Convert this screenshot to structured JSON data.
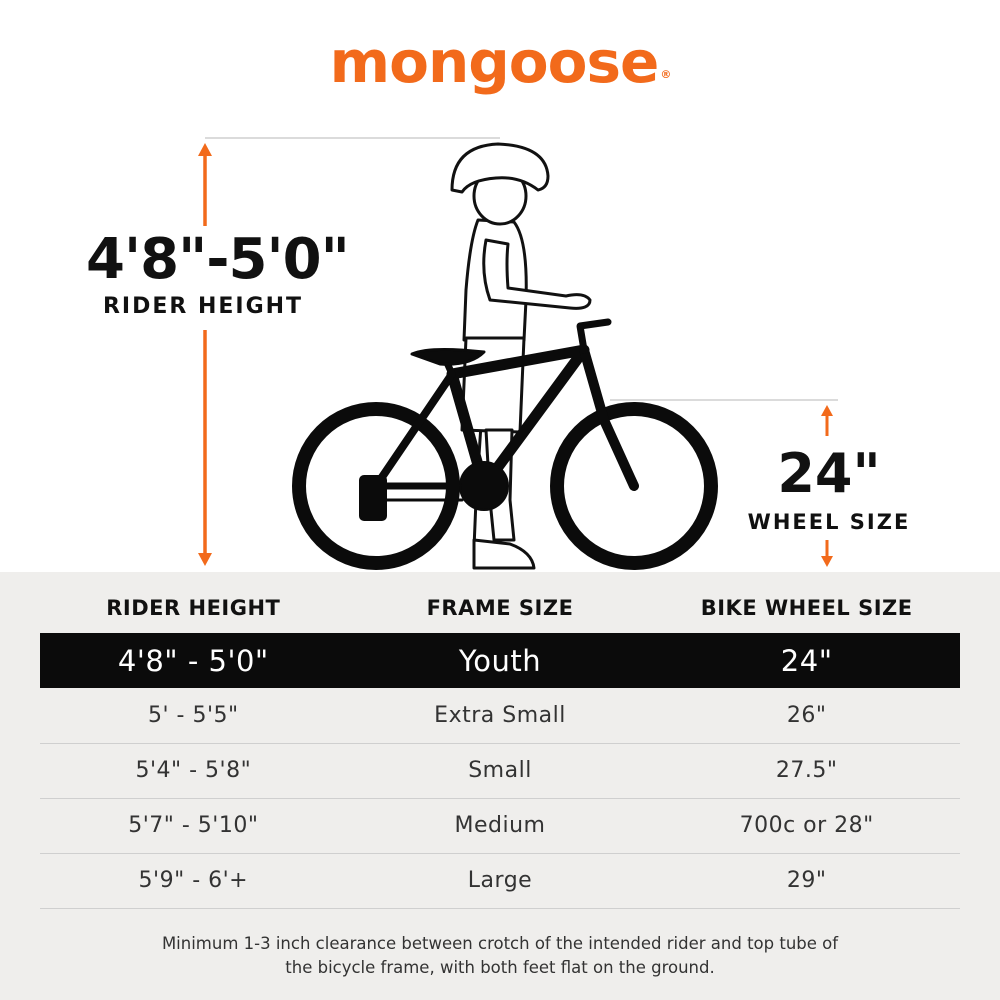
{
  "brand": {
    "name": "mongoose",
    "mark": "®"
  },
  "hero": {
    "rider_height_value": "4'8\"-5'0\"",
    "rider_height_label": "RIDER HEIGHT",
    "wheel_size_value": "24\"",
    "wheel_size_label": "WHEEL SIZE",
    "accent_color": "#f26a1b"
  },
  "size_table": {
    "headers": [
      "RIDER HEIGHT",
      "FRAME SIZE",
      "BIKE WHEEL SIZE"
    ],
    "rows": [
      {
        "rider_height": "4'8\" - 5'0\"",
        "frame_size": "Youth",
        "wheel_size": "24\"",
        "highlighted": true
      },
      {
        "rider_height": "5' - 5'5\"",
        "frame_size": "Extra Small",
        "wheel_size": "26\""
      },
      {
        "rider_height": "5'4\" - 5'8\"",
        "frame_size": "Small",
        "wheel_size": "27.5\""
      },
      {
        "rider_height": "5'7\" - 5'10\"",
        "frame_size": "Medium",
        "wheel_size": "700c or 28\""
      },
      {
        "rider_height": "5'9\" - 6'+",
        "frame_size": "Large",
        "wheel_size": "29\""
      }
    ]
  },
  "footnote": "Minimum 1-3 inch clearance between crotch of the intended rider and top tube of the bicycle frame, with both feet flat on the ground."
}
